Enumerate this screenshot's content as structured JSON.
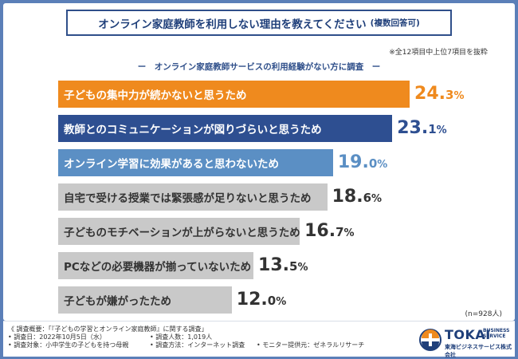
{
  "title": "オンライン家庭教師を利用しない理由を教えてください",
  "title_note": "(複数回答可)",
  "top_note": "※全12項目中上位7項目を抜粋",
  "subtitle": "ー　オンライン家庭教師サービスの利用経験がない方に調査　ー",
  "sample_note": "(n=928人)",
  "chart_data": {
    "type": "bar",
    "orientation": "horizontal",
    "categories": [
      "子どもの集中力が続かないと思うため",
      "教師とのコミュニケーションが図りづらいと思うため",
      "オンライン学習に効果があると思わないため",
      "自宅で受ける授業では緊張感が足りないと思うため",
      "子どものモチベーションが上がらないと思うため",
      "PCなどの必要機器が揃っていないため",
      "子どもが嫌がったため"
    ],
    "values": [
      24.3,
      23.1,
      19.0,
      18.6,
      16.7,
      13.5,
      12.0
    ],
    "value_labels": [
      {
        "int": "24.",
        "dec": "3",
        "unit": "%"
      },
      {
        "int": "23.",
        "dec": "1",
        "unit": "%"
      },
      {
        "int": "19.",
        "dec": "0",
        "unit": "%"
      },
      {
        "int": "18.",
        "dec": "6",
        "unit": "%"
      },
      {
        "int": "16.",
        "dec": "7",
        "unit": "%"
      },
      {
        "int": "13.",
        "dec": "5",
        "unit": "%"
      },
      {
        "int": "12.",
        "dec": "0",
        "unit": "%"
      }
    ],
    "colors": [
      "#ef8a1e",
      "#2e4f91",
      "#5b8fc4",
      "#c9c9c9",
      "#c9c9c9",
      "#c9c9c9",
      "#c9c9c9"
    ],
    "label_colors": [
      "#ffffff",
      "#ffffff",
      "#ffffff",
      "#333333",
      "#333333",
      "#333333",
      "#333333"
    ],
    "value_colors": [
      "#ef8a1e",
      "#2e4f91",
      "#5b8fc4",
      "#333333",
      "#333333",
      "#333333",
      "#333333"
    ]
  },
  "survey": {
    "overview": "《 調査概要：「『子どもの学習とオンライン家庭教師』に関する調査」",
    "date": "• 調査日：2022年10月5日（水）",
    "count": "• 調査人数：1,019人",
    "target": "• 調査対象：小中学生の子どもを持つ母親",
    "method": "• 調査方法：インターネット調査",
    "provider": "• モニター提供元：ゼネラルリサーチ"
  },
  "logo": {
    "main": "TOKAI",
    "business": "BUSINESS",
    "service": "SERVICE",
    "sub": "東海ビジネスサービス株式会社"
  }
}
